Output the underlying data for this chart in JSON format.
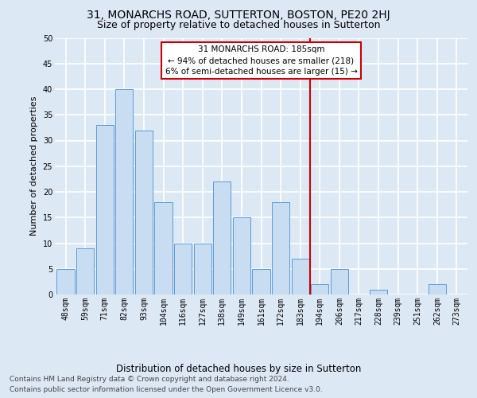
{
  "title": "31, MONARCHS ROAD, SUTTERTON, BOSTON, PE20 2HJ",
  "subtitle": "Size of property relative to detached houses in Sutterton",
  "xlabel": "Distribution of detached houses by size in Sutterton",
  "ylabel": "Number of detached properties",
  "bar_labels": [
    "48sqm",
    "59sqm",
    "71sqm",
    "82sqm",
    "93sqm",
    "104sqm",
    "116sqm",
    "127sqm",
    "138sqm",
    "149sqm",
    "161sqm",
    "172sqm",
    "183sqm",
    "194sqm",
    "206sqm",
    "217sqm",
    "228sqm",
    "239sqm",
    "251sqm",
    "262sqm",
    "273sqm"
  ],
  "bar_values": [
    5,
    9,
    33,
    40,
    32,
    18,
    10,
    10,
    22,
    15,
    5,
    18,
    7,
    2,
    5,
    0,
    1,
    0,
    0,
    2,
    0
  ],
  "bar_color": "#c9ddf2",
  "bar_edge_color": "#5b9bd5",
  "background_color": "#dde8f5",
  "grid_color": "#ffffff",
  "annotation_title": "31 MONARCHS ROAD: 185sqm",
  "annotation_line1": "← 94% of detached houses are smaller (218)",
  "annotation_line2": "6% of semi-detached houses are larger (15) →",
  "annotation_box_color": "#cc0000",
  "red_line_index": 12.5,
  "ylim": [
    0,
    50
  ],
  "yticks": [
    0,
    5,
    10,
    15,
    20,
    25,
    30,
    35,
    40,
    45,
    50
  ],
  "footer_line1": "Contains HM Land Registry data © Crown copyright and database right 2024.",
  "footer_line2": "Contains public sector information licensed under the Open Government Licence v3.0.",
  "title_fontsize": 10,
  "subtitle_fontsize": 9,
  "ylabel_fontsize": 8,
  "xlabel_fontsize": 8.5,
  "tick_fontsize": 7,
  "annotation_fontsize": 7.5,
  "footer_fontsize": 6.5
}
